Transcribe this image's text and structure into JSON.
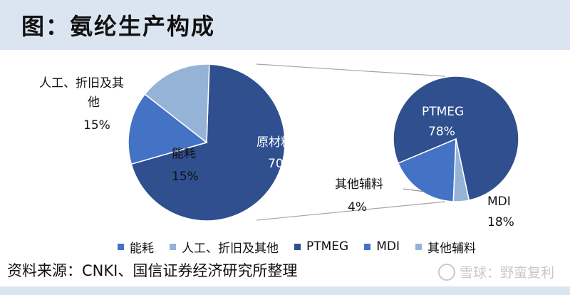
{
  "title": "图：氨纶生产构成",
  "colors": {
    "dark_blue": "#2f4f8f",
    "mid_blue": "#4472c4",
    "light_blue": "#95b3d7",
    "title_bg": "#dbe5f1"
  },
  "chart_data": [
    {
      "type": "pie",
      "slices": [
        {
          "name": "原材料",
          "value": 70,
          "label": "70%",
          "color": "#2f4f8f"
        },
        {
          "name": "能耗",
          "value": 15,
          "label": "15%",
          "color": "#4472c4"
        },
        {
          "name": "人工、折旧及其他",
          "value": 15,
          "label": "15%",
          "color": "#95b3d7"
        }
      ]
    },
    {
      "type": "pie",
      "slices": [
        {
          "name": "PTMEG",
          "value": 78,
          "label": "78%",
          "color": "#2f4f8f"
        },
        {
          "name": "MDI",
          "value": 18,
          "label": "18%",
          "color": "#4472c4"
        },
        {
          "name": "其他辅料",
          "value": 4,
          "label": "4%",
          "color": "#95b3d7"
        }
      ]
    }
  ],
  "labels": {
    "labor_line1": "人工、折旧及其",
    "labor_line2": "他",
    "labor_pct": "15%",
    "energy": "能耗",
    "energy_pct": "15%",
    "raw": "原材料",
    "raw_pct": "70%",
    "ptmeg": "PTMEG",
    "ptmeg_pct": "78%",
    "mdi": "MDI",
    "mdi_pct": "18%",
    "aux": "其他辅料",
    "aux_pct": "4%"
  },
  "legend": [
    {
      "label": "能耗",
      "color": "#4472c4"
    },
    {
      "label": "人工、折旧及其他",
      "color": "#95b3d7"
    },
    {
      "label": "PTMEG",
      "color": "#2f4f8f"
    },
    {
      "label": "MDI",
      "color": "#4472c4"
    },
    {
      "label": "其他辅料",
      "color": "#95b3d7"
    }
  ],
  "source": "资料来源：CNKI、国信证券经济研究所整理",
  "watermark": "雪球：野蛮复利"
}
